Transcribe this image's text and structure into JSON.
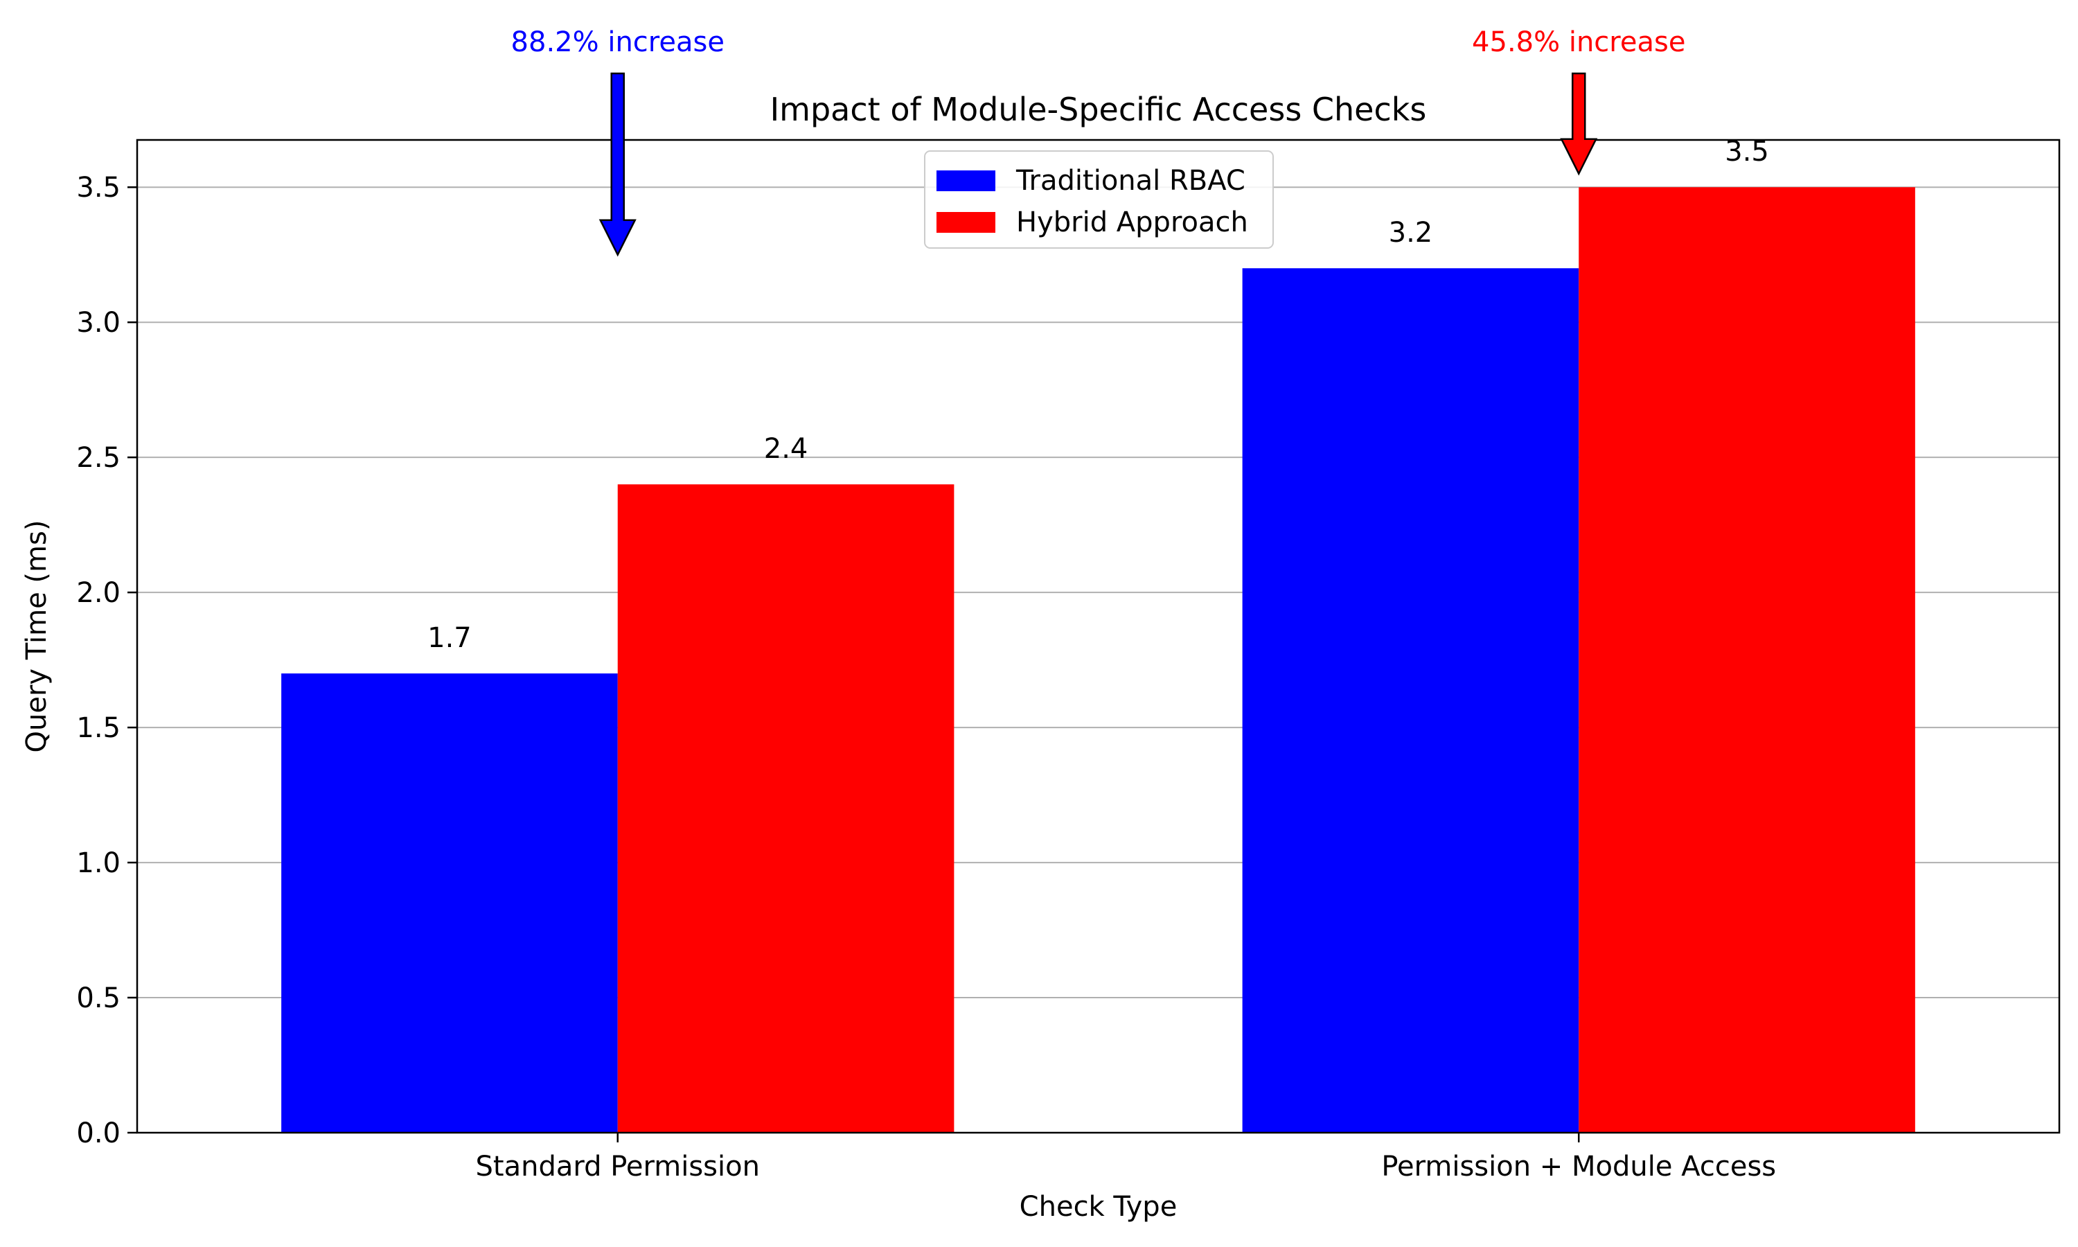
{
  "chart_data": {
    "type": "bar",
    "title": "Impact of Module-Specific Access Checks",
    "xlabel": "Check Type",
    "ylabel": "Query Time (ms)",
    "categories": [
      "Standard Permission",
      "Permission + Module Access"
    ],
    "series": [
      {
        "name": "Traditional RBAC",
        "color": "#0000ff",
        "values": [
          1.7,
          3.2
        ]
      },
      {
        "name": "Hybrid Approach",
        "color": "#ff0000",
        "values": [
          2.4,
          3.5
        ]
      }
    ],
    "data_labels": [
      "1.7",
      "3.2",
      "2.4",
      "3.5"
    ],
    "ylim": [
      0,
      3.675
    ],
    "yticks": [
      0.0,
      0.5,
      1.0,
      1.5,
      2.0,
      2.5,
      3.0,
      3.5
    ],
    "ytick_labels": [
      "0.0",
      "0.5",
      "1.0",
      "1.5",
      "2.0",
      "2.5",
      "3.0",
      "3.5"
    ],
    "grid": "horizontal",
    "legend_position": "top-center",
    "annotations": [
      {
        "text": "88.2% increase",
        "category": "Standard Permission",
        "color": "#0000ff",
        "points_to": 3.25
      },
      {
        "text": "45.8% increase",
        "category": "Permission + Module Access",
        "color": "#ff0000",
        "points_to": 3.55
      }
    ]
  }
}
